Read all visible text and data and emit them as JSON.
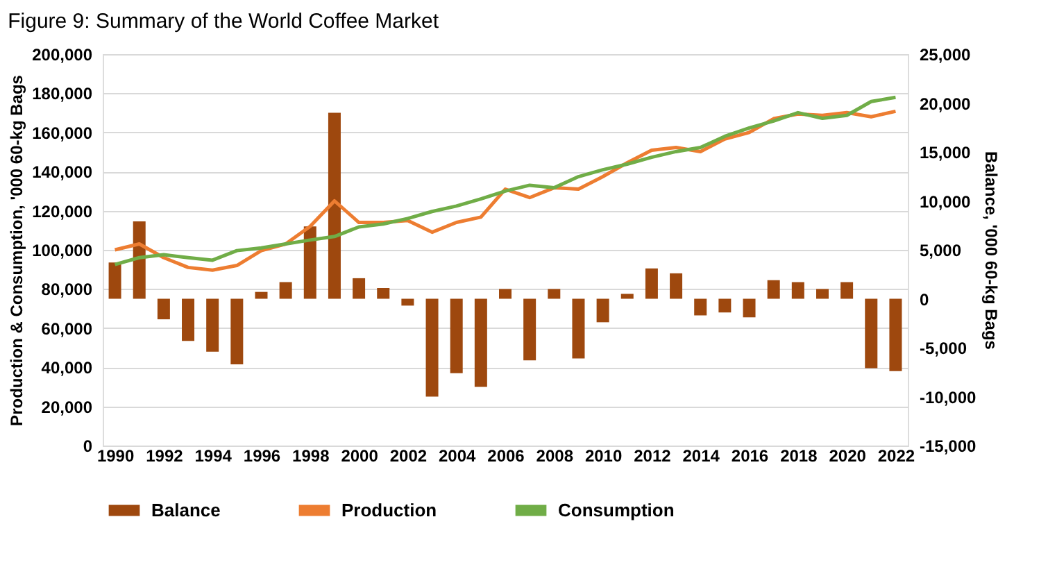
{
  "chart_data": {
    "type": "line",
    "title": "Figure 9: Summary of the World Coffee Market",
    "ylabel": "Production & Consumption, '000 60-kg Bags",
    "y2label": "Balance, '000 60-kg Bags",
    "x": [
      1990,
      1991,
      1992,
      1993,
      1994,
      1995,
      1996,
      1997,
      1998,
      1999,
      2000,
      2001,
      2002,
      2003,
      2004,
      2005,
      2006,
      2007,
      2008,
      2009,
      2010,
      2011,
      2012,
      2013,
      2014,
      2015,
      2016,
      2017,
      2018,
      2019,
      2020,
      2021,
      2022
    ],
    "series": [
      {
        "name": "Balance",
        "type": "bar",
        "axis": "y2",
        "color": "#9e480e",
        "values": [
          3700,
          7900,
          -2100,
          -4300,
          -5400,
          -6700,
          700,
          1700,
          7400,
          19000,
          2100,
          1100,
          -700,
          -10000,
          -7600,
          -9000,
          1000,
          -6300,
          1000,
          -6100,
          -2400,
          500,
          3100,
          2600,
          -1700,
          -1400,
          -1900,
          1900,
          1700,
          1000,
          1700,
          -7100,
          -7400
        ]
      },
      {
        "name": "Production",
        "color": "#ed7d31",
        "values": [
          100000,
          103000,
          96000,
          91000,
          89600,
          92000,
          99600,
          103000,
          112000,
          125000,
          114000,
          114000,
          115000,
          109000,
          114000,
          116700,
          131000,
          126700,
          131700,
          131000,
          137400,
          144500,
          150900,
          152300,
          150200,
          156600,
          160000,
          167000,
          169400,
          168700,
          170100,
          168000,
          170800
        ]
      },
      {
        "name": "Consumption",
        "color": "#70ad47",
        "values": [
          92500,
          96000,
          97500,
          96000,
          94700,
          99600,
          101000,
          103000,
          105000,
          106800,
          111700,
          113200,
          116000,
          119600,
          122400,
          126000,
          130000,
          133000,
          131700,
          137400,
          140900,
          143800,
          147300,
          150200,
          152300,
          158000,
          162300,
          165800,
          170100,
          167200,
          168700,
          175800,
          177900
        ]
      }
    ],
    "xlim": [
      1989.5,
      2022.5
    ],
    "xticks": [
      1990,
      1992,
      1994,
      1996,
      1998,
      2000,
      2002,
      2004,
      2006,
      2008,
      2010,
      2012,
      2014,
      2016,
      2018,
      2020,
      2022
    ],
    "ylim": [
      0,
      200000
    ],
    "yticks": [
      0,
      {
        "value": 20000,
        "label": "20,000"
      },
      {
        "value": 40000,
        "label": "40,000"
      },
      {
        "value": 60000,
        "label": "60,000"
      },
      {
        "value": 80000,
        "label": "80,000"
      },
      {
        "value": 100000,
        "label": "100,000"
      },
      {
        "value": 120000,
        "label": "120,000"
      },
      {
        "value": 140000,
        "label": "140,000"
      },
      {
        "value": 160000,
        "label": "160,000"
      },
      {
        "value": 180000,
        "label": "180,000"
      },
      {
        "value": 200000,
        "label": "200,000"
      }
    ],
    "y2lim": [
      -15000,
      25000
    ],
    "y2ticks": [
      {
        "value": -15000,
        "label": "-15,000"
      },
      {
        "value": -10000,
        "label": "-10,000"
      },
      {
        "value": -5000,
        "label": "-5,000"
      },
      0,
      {
        "value": 5000,
        "label": "5,000"
      },
      {
        "value": 10000,
        "label": "10,000"
      },
      {
        "value": 15000,
        "label": "15,000"
      },
      {
        "value": 20000,
        "label": "20,000"
      },
      {
        "value": 25000,
        "label": "25,000"
      }
    ],
    "grid": "y",
    "legend": "bottom",
    "marker": "none",
    "line_style": "solid"
  }
}
